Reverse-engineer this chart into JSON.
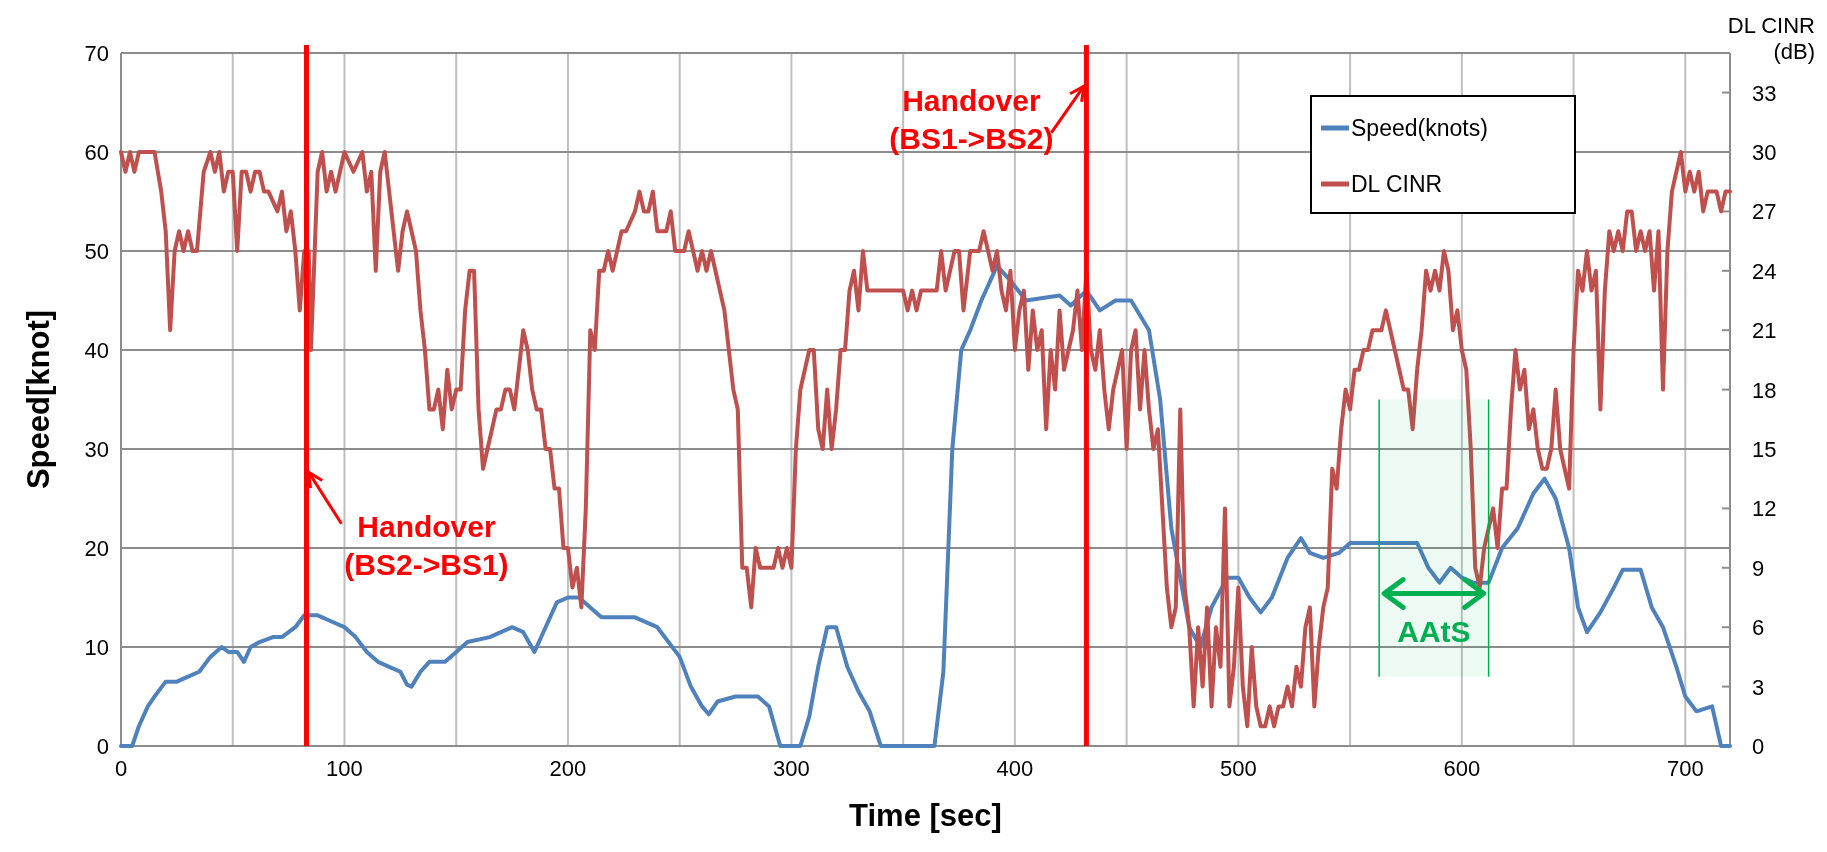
{
  "chart_data": {
    "type": "line",
    "xlabel": "Time [sec]",
    "ylabel": "Speed[knot]",
    "y2label": "DL CINR\n(dB)",
    "xlim": [
      0,
      720
    ],
    "xticks": [
      0,
      {
        "value": 50,
        "label": null
      },
      100,
      {
        "value": 150,
        "label": null
      },
      200,
      {
        "value": 250,
        "label": null
      },
      300,
      {
        "value": 350,
        "label": null
      },
      400,
      {
        "value": 450,
        "label": null
      },
      500,
      {
        "value": 550,
        "label": null
      },
      600,
      {
        "value": 650,
        "label": null
      },
      700
    ],
    "ylim": [
      0,
      70
    ],
    "yticks": [
      0,
      10,
      20,
      30,
      40,
      50,
      60,
      70
    ],
    "y2lim": [
      0,
      35
    ],
    "y2ticks": [
      0,
      3,
      6,
      9,
      12,
      15,
      18,
      21,
      24,
      27,
      30,
      33
    ],
    "grid": true,
    "legend": "top right",
    "line_style": "solid",
    "marker": "none",
    "series": [
      {
        "name": "Speed(knots)",
        "color": "#4f81bd",
        "x": [
          0,
          5,
          8,
          12,
          15,
          20,
          25,
          30,
          35,
          40,
          45,
          48,
          52,
          55,
          58,
          62,
          68,
          72,
          78,
          82,
          88,
          95,
          100,
          105,
          110,
          115,
          120,
          125,
          128,
          130,
          134,
          138,
          145,
          150,
          155,
          165,
          170,
          175,
          180,
          185,
          190,
          195,
          200,
          205,
          210,
          215,
          230,
          240,
          250,
          255,
          260,
          263,
          267,
          275,
          285,
          290,
          295,
          304,
          308,
          312,
          316,
          320,
          325,
          330,
          335,
          340,
          364,
          368,
          372,
          376,
          380,
          385,
          392,
          398,
          405,
          420,
          425,
          432,
          438,
          445,
          452,
          460,
          465,
          470,
          478,
          483,
          488,
          495,
          500,
          505,
          510,
          515,
          522,
          528,
          532,
          538,
          545,
          550,
          560,
          570,
          580,
          585,
          590,
          595,
          600,
          605,
          612,
          618,
          625,
          632,
          637,
          642,
          648,
          652,
          656,
          662,
          668,
          672,
          680,
          685,
          690,
          696,
          700,
          705,
          712,
          716,
          720
        ],
        "values": [
          0,
          0,
          2,
          4,
          5,
          6.5,
          6.5,
          7,
          7.5,
          9,
          10,
          9.5,
          9.5,
          8.5,
          10,
          10.5,
          11,
          11,
          12,
          13.2,
          13.2,
          12.5,
          12,
          11,
          9.5,
          8.5,
          8,
          7.5,
          6.2,
          6,
          7.5,
          8.5,
          8.5,
          9.5,
          10.5,
          11,
          11.5,
          12,
          11.5,
          9.5,
          12,
          14.5,
          15,
          15,
          14,
          13,
          13,
          12,
          9,
          6,
          4,
          3.2,
          4.5,
          5,
          5,
          4,
          0,
          0,
          3,
          8,
          12,
          12,
          8,
          5.5,
          3.5,
          0,
          0,
          7.5,
          30,
          40,
          42,
          45,
          48.5,
          47,
          45,
          45.5,
          44.5,
          46,
          44,
          45,
          45,
          42,
          35,
          22,
          12,
          10,
          14,
          17,
          17,
          15,
          13.5,
          15,
          19,
          21,
          19.5,
          19,
          19.5,
          20.5,
          20.5,
          20.5,
          20.5,
          18,
          16.5,
          18,
          17,
          16.5,
          16.5,
          20,
          22,
          25.5,
          27,
          25,
          20,
          14,
          11.5,
          13.5,
          16,
          17.8,
          17.8,
          14,
          12,
          8,
          5,
          3.5,
          4,
          0,
          0
        ]
      },
      {
        "name": "DL CINR",
        "color": "#c0504d",
        "axis": "y2",
        "x": [
          0,
          2,
          4,
          6,
          8,
          15,
          18,
          20,
          22,
          24,
          26,
          28,
          30,
          32,
          34,
          37,
          40,
          42,
          44,
          46,
          48,
          50,
          52,
          54,
          56,
          58,
          60,
          62,
          64,
          66,
          70,
          72,
          74,
          76,
          78,
          80,
          82,
          84,
          85,
          88,
          90,
          92,
          94,
          96,
          100,
          104,
          108,
          110,
          112,
          114,
          116,
          118,
          120,
          124,
          126,
          128,
          132,
          134,
          136,
          138,
          140,
          142,
          144,
          146,
          148,
          150,
          152,
          154,
          156,
          158,
          160,
          162,
          164,
          166,
          168,
          170,
          172,
          174,
          176,
          178,
          180,
          182,
          184,
          186,
          188,
          190,
          192,
          194,
          196,
          198,
          200,
          202,
          204,
          206,
          208,
          210,
          212,
          214,
          216,
          218,
          220,
          222,
          224,
          226,
          230,
          232,
          234,
          236,
          238,
          240,
          244,
          246,
          248,
          252,
          254,
          256,
          258,
          260,
          262,
          264,
          266,
          268,
          270,
          272,
          274,
          276,
          278,
          280,
          282,
          284,
          286,
          288,
          292,
          294,
          296,
          298,
          300,
          302,
          304,
          306,
          308,
          310,
          312,
          314,
          316,
          318,
          320,
          322,
          324,
          326,
          328,
          330,
          332,
          334,
          338,
          345,
          350,
          352,
          354,
          356,
          358,
          362,
          365,
          367,
          369,
          371,
          373,
          375,
          377,
          380,
          384,
          386,
          388,
          390,
          392,
          394,
          396,
          398,
          400,
          402,
          404,
          406,
          408,
          410,
          412,
          414,
          416,
          418,
          420,
          422,
          424,
          426,
          428,
          430,
          432,
          434,
          436,
          438,
          440,
          442,
          444,
          446,
          448,
          450,
          452,
          454,
          456,
          458,
          460,
          462,
          464,
          466,
          468,
          470,
          472,
          474,
          476,
          478,
          480,
          482,
          484,
          486,
          488,
          490,
          492,
          494,
          496,
          498,
          500,
          502,
          504,
          506,
          508,
          510,
          512,
          514,
          516,
          518,
          520,
          522,
          524,
          526,
          528,
          530,
          532,
          534,
          536,
          538,
          540,
          542,
          544,
          546,
          548,
          550,
          552,
          554,
          556,
          558,
          560,
          564,
          566,
          568,
          570,
          572,
          574,
          576,
          578,
          580,
          582,
          584,
          586,
          588,
          590,
          592,
          594,
          596,
          598,
          600,
          602,
          604,
          606,
          608,
          610,
          612,
          614,
          616,
          618,
          620,
          622,
          624,
          626,
          628,
          630,
          632,
          634,
          636,
          638,
          640,
          642,
          644,
          646,
          648,
          650,
          652,
          654,
          656,
          658,
          660,
          662,
          664,
          666,
          668,
          670,
          672,
          674,
          676,
          678,
          680,
          682,
          684,
          686,
          688,
          690,
          692,
          694,
          696,
          698,
          700,
          702,
          704,
          706,
          708,
          710,
          714,
          716,
          718,
          720
        ],
        "values": [
          30,
          29,
          30,
          29,
          30,
          30,
          28,
          26,
          21,
          25,
          26,
          25,
          26,
          25,
          25,
          29,
          30,
          29,
          30,
          28,
          29,
          29,
          25,
          29,
          29,
          28,
          29,
          29,
          28,
          28,
          27,
          28,
          26,
          27,
          25,
          22,
          25,
          25,
          20,
          29,
          30,
          28,
          29,
          28,
          30,
          29,
          30,
          28,
          29,
          24,
          29,
          30,
          28,
          24,
          26,
          27,
          25,
          22,
          20,
          17,
          17,
          18,
          16,
          19,
          17,
          18,
          18,
          22,
          24,
          24,
          17,
          14,
          15,
          16,
          17,
          17,
          18,
          18,
          17,
          19,
          21,
          20,
          18,
          17,
          17,
          15,
          15,
          13,
          13,
          10,
          10,
          8,
          9,
          7,
          12,
          21,
          20,
          24,
          24,
          25,
          24,
          25,
          26,
          26,
          27,
          28,
          27,
          27,
          28,
          26,
          26,
          27,
          25,
          25,
          26,
          25,
          24,
          25,
          24,
          25,
          24,
          23,
          22,
          20,
          18,
          17,
          9,
          9,
          7,
          10,
          9,
          9,
          9,
          10,
          9,
          10,
          9,
          15,
          18,
          19,
          20,
          20,
          16,
          15,
          18,
          15,
          17,
          20,
          20,
          23,
          24,
          22,
          25,
          23,
          23,
          23,
          23,
          22,
          23,
          22,
          23,
          23,
          23,
          25,
          23,
          24,
          25,
          25,
          22,
          25,
          25,
          26,
          25,
          24,
          25,
          23,
          22,
          24,
          20,
          22,
          23,
          19,
          22,
          20,
          21,
          16,
          20,
          18,
          22,
          19,
          20,
          21,
          23,
          20,
          24,
          20,
          19,
          21,
          18,
          16,
          18,
          19,
          20,
          15,
          20,
          21,
          17,
          20,
          17,
          15,
          16,
          12,
          8,
          6,
          7,
          17,
          8,
          6,
          2,
          6,
          3,
          7,
          2,
          6,
          4,
          12,
          2,
          4,
          8,
          3,
          1,
          5,
          2,
          1,
          1,
          2,
          1,
          2,
          2,
          3,
          2,
          4,
          3,
          6,
          7,
          2,
          5,
          7,
          8,
          14,
          13,
          16,
          18,
          17,
          19,
          19,
          20,
          20,
          21,
          21,
          22,
          21,
          20,
          19,
          18,
          18,
          16,
          19,
          21,
          24,
          23,
          24,
          23,
          25,
          24,
          21,
          22,
          20,
          19,
          15,
          9,
          8,
          10,
          11,
          12,
          10,
          13,
          13,
          17,
          20,
          18,
          19,
          16,
          17,
          15,
          14,
          14,
          15,
          18,
          15,
          14,
          13,
          20,
          24,
          23,
          25,
          23,
          24,
          17,
          23,
          26,
          25,
          26,
          25,
          27,
          27,
          25,
          26,
          25,
          26,
          23,
          26,
          18,
          25,
          28,
          29,
          30,
          28,
          29,
          28,
          29,
          27,
          28,
          28,
          27,
          28,
          28
        ]
      }
    ],
    "ref_lines": [
      {
        "axis": "x",
        "value": 83,
        "color": "#ff0000"
      },
      {
        "axis": "x",
        "value": 432,
        "color": "#ff0000"
      }
    ],
    "bands": [
      {
        "axis": "x",
        "from": 563,
        "to": 612,
        "label": "AAtS",
        "color": "#00b050"
      }
    ],
    "annotations": [
      {
        "text": "Handover\n(BS2->BS1)",
        "x": 83,
        "y": 28
      },
      {
        "text": "Handover\n(BS1->BS2)",
        "x": 432,
        "y": 67
      }
    ]
  }
}
